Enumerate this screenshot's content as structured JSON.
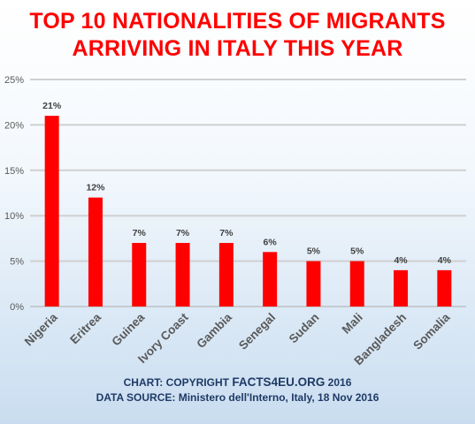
{
  "title_line1": "TOP 10 NATIONALITIES OF MIGRANTS",
  "title_line2": "ARRIVING IN ITALY THIS YEAR",
  "footer": {
    "copyright_prefix": "CHART: COPYRIGHT",
    "copyright_brand": "FACTS4EU.ORG",
    "copyright_year": "2016",
    "source": "DATA SOURCE: Ministero dell'Interno, Italy, 18 Nov 2016"
  },
  "colors": {
    "bar": "#ff0000",
    "title": "#ff0000",
    "text": "#1f3a66",
    "grid": "#d0d0d0"
  },
  "chart_data": {
    "type": "bar",
    "categories": [
      "Nigeria",
      "Eritrea",
      "Guinea",
      "Ivory Coast",
      "Gambia",
      "Senegal",
      "Sudan",
      "Mali",
      "Bangladesh",
      "Somalia"
    ],
    "values": [
      21,
      12,
      7,
      7,
      7,
      6,
      5,
      5,
      4,
      4
    ],
    "data_labels": [
      "21%",
      "12%",
      "7%",
      "7%",
      "7%",
      "6%",
      "5%",
      "5%",
      "4%",
      "4%"
    ],
    "yticks": [
      "0%",
      "5%",
      "10%",
      "15%",
      "20%",
      "25%"
    ],
    "ylim": [
      0,
      25
    ],
    "grid": true,
    "legend": "none"
  }
}
